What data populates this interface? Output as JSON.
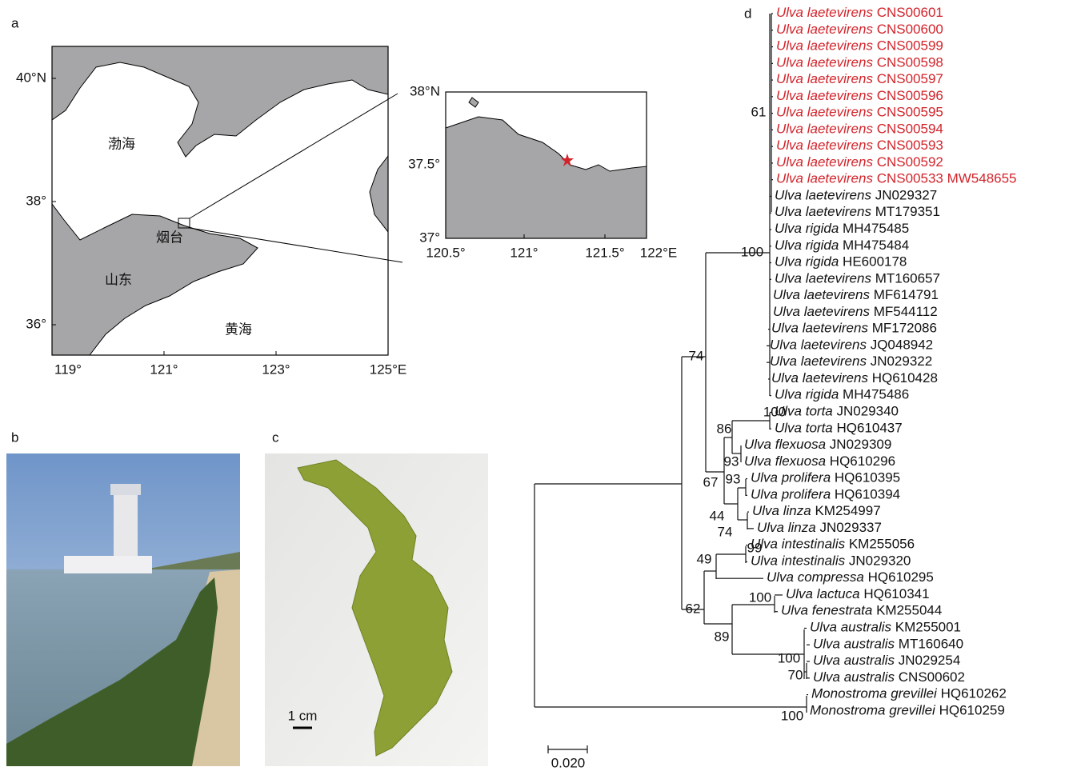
{
  "panel_labels": [
    "a",
    "b",
    "c",
    "d"
  ],
  "map": {
    "lat_ticks": [
      "40°N",
      "38°",
      "36°"
    ],
    "lon_ticks": [
      "119°",
      "121°",
      "123°",
      "125°E"
    ],
    "places": [
      "渤海",
      "烟台",
      "山东",
      "黄海"
    ]
  },
  "inset": {
    "lat_ticks": [
      "38°N",
      "37.5°",
      "37°"
    ],
    "lon_ticks": [
      "120.5°",
      "121°",
      "121.5°",
      "122°E"
    ]
  },
  "photo_c": {
    "scale_bar": "1 cm"
  },
  "tree": {
    "leaves": [
      {
        "species": "Ulva laetevirens",
        "accession": "CNS00601",
        "highlight": true
      },
      {
        "species": "Ulva laetevirens",
        "accession": "CNS00600",
        "highlight": true
      },
      {
        "species": "Ulva laetevirens",
        "accession": "CNS00599",
        "highlight": true
      },
      {
        "species": "Ulva laetevirens",
        "accession": "CNS00598",
        "highlight": true
      },
      {
        "species": "Ulva laetevirens",
        "accession": "CNS00597",
        "highlight": true
      },
      {
        "species": "Ulva laetevirens",
        "accession": "CNS00596",
        "highlight": true
      },
      {
        "species": "Ulva laetevirens",
        "accession": "CNS00595",
        "highlight": true
      },
      {
        "species": "Ulva laetevirens",
        "accession": "CNS00594",
        "highlight": true
      },
      {
        "species": "Ulva laetevirens",
        "accession": "CNS00593",
        "highlight": true
      },
      {
        "species": "Ulva laetevirens",
        "accession": "CNS00592",
        "highlight": true
      },
      {
        "species": "Ulva laetevirens",
        "accession": "CNS00533 MW548655",
        "highlight": true
      },
      {
        "species": "Ulva laetevirens",
        "accession": "JN029327",
        "highlight": false
      },
      {
        "species": "Ulva laetevirens",
        "accession": "MT179351",
        "highlight": false
      },
      {
        "species": "Ulva rigida",
        "accession": "MH475485",
        "highlight": false
      },
      {
        "species": "Ulva rigida",
        "accession": "MH475484",
        "highlight": false
      },
      {
        "species": "Ulva rigida",
        "accession": "HE600178",
        "highlight": false
      },
      {
        "species": "Ulva laetevirens",
        "accession": "MT160657",
        "highlight": false
      },
      {
        "species": "Ulva laetevirens",
        "accession": "MF614791",
        "highlight": false
      },
      {
        "species": "Ulva laetevirens",
        "accession": "MF544112",
        "highlight": false
      },
      {
        "species": "Ulva laetevirens",
        "accession": "MF172086",
        "highlight": false
      },
      {
        "species": "Ulva laetevirens",
        "accession": "JQ048942",
        "highlight": false
      },
      {
        "species": "Ulva laetevirens",
        "accession": "JN029322",
        "highlight": false
      },
      {
        "species": "Ulva laetevirens",
        "accession": "HQ610428",
        "highlight": false
      },
      {
        "species": "Ulva rigida",
        "accession": "MH475486",
        "highlight": false
      },
      {
        "species": "Ulva torta",
        "accession": "JN029340",
        "highlight": false
      },
      {
        "species": "Ulva torta",
        "accession": "HQ610437",
        "highlight": false
      },
      {
        "species": "Ulva flexuosa",
        "accession": "JN029309",
        "highlight": false
      },
      {
        "species": "Ulva flexuosa",
        "accession": "HQ610296",
        "highlight": false
      },
      {
        "species": "Ulva prolifera",
        "accession": "HQ610395",
        "highlight": false
      },
      {
        "species": "Ulva prolifera",
        "accession": "HQ610394",
        "highlight": false
      },
      {
        "species": "Ulva linza",
        "accession": "KM254997",
        "highlight": false
      },
      {
        "species": "Ulva linza",
        "accession": "JN029337",
        "highlight": false
      },
      {
        "species": "Ulva intestinalis",
        "accession": "KM255056",
        "highlight": false
      },
      {
        "species": "Ulva intestinalis",
        "accession": "JN029320",
        "highlight": false
      },
      {
        "species": "Ulva compressa",
        "accession": "HQ610295",
        "highlight": false
      },
      {
        "species": "Ulva lactuca",
        "accession": "HQ610341",
        "highlight": false
      },
      {
        "species": "Ulva fenestrata",
        "accession": "KM255044",
        "highlight": false
      },
      {
        "species": "Ulva australis",
        "accession": "KM255001",
        "highlight": false
      },
      {
        "species": "Ulva australis",
        "accession": "MT160640",
        "highlight": false
      },
      {
        "species": "Ulva australis",
        "accession": "JN029254",
        "highlight": false
      },
      {
        "species": "Ulva australis",
        "accession": "CNS00602",
        "highlight": false
      },
      {
        "species": "Monostroma grevillei",
        "accession": "HQ610262",
        "highlight": false
      },
      {
        "species": "Monostroma grevillei",
        "accession": "HQ610259",
        "highlight": false
      }
    ],
    "bootstrap": [
      "61",
      "100",
      "74",
      "100",
      "86",
      "93",
      "67",
      "93",
      "44",
      "74",
      "99",
      "49",
      "62",
      "100",
      "89",
      "100",
      "70",
      "100"
    ],
    "scale": "0.020"
  }
}
